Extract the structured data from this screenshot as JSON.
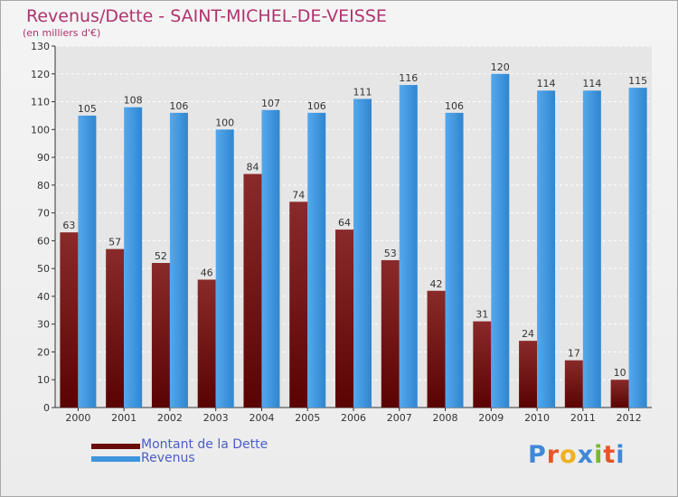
{
  "header": {
    "title": "Revenus/Dette - SAINT-MICHEL-DE-VEISSE",
    "subtitle": "(en milliers d'€)"
  },
  "chart_data": {
    "type": "bar",
    "title": "Revenus/Dette - SAINT-MICHEL-DE-VEISSE",
    "subtitle": "(en milliers d'€)",
    "categories": [
      "2000",
      "2001",
      "2002",
      "2003",
      "2004",
      "2005",
      "2006",
      "2007",
      "2008",
      "2009",
      "2010",
      "2011",
      "2012"
    ],
    "series": [
      {
        "name": "Montant de la Dette",
        "color": "#7a1212",
        "values": [
          63,
          57,
          52,
          46,
          84,
          74,
          64,
          53,
          42,
          31,
          24,
          17,
          10
        ]
      },
      {
        "name": "Revenus",
        "color": "#3d95dc",
        "values": [
          105,
          108,
          106,
          100,
          107,
          106,
          111,
          116,
          106,
          120,
          114,
          114,
          115
        ]
      }
    ],
    "ylim": [
      0,
      130
    ],
    "yticks": [
      0,
      10,
      20,
      30,
      40,
      50,
      60,
      70,
      80,
      90,
      100,
      110,
      120,
      130
    ],
    "grid": true,
    "legend": "bottom-left"
  },
  "legend": {
    "items": [
      {
        "label": "Montant de la Dette",
        "color": "#6a0c0c"
      },
      {
        "label": "Revenus",
        "color": "#3d95dc"
      }
    ]
  },
  "logo": {
    "letters": [
      "P",
      "r",
      "o",
      "x",
      "i",
      "t",
      "i"
    ],
    "colors": [
      "#3f88d8",
      "#e8542a",
      "#f0b020",
      "#3f88d8",
      "#7ab82e",
      "#e8542a",
      "#3f88d8"
    ]
  }
}
